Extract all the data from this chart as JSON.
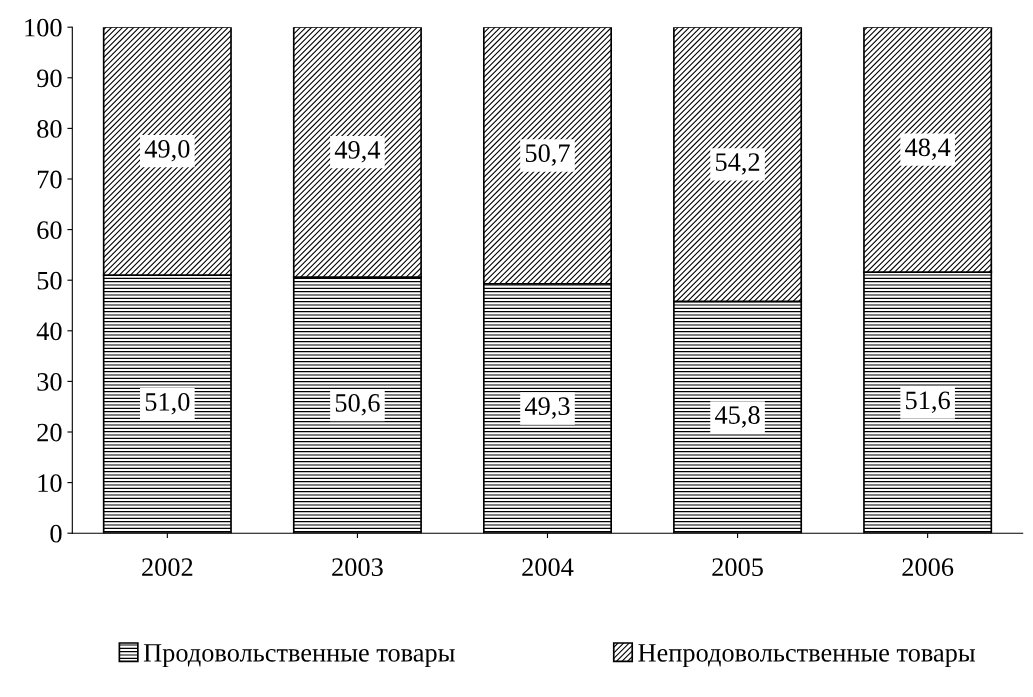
{
  "chart_data": {
    "type": "bar",
    "stacked": true,
    "categories": [
      "2002",
      "2003",
      "2004",
      "2005",
      "2006"
    ],
    "series": [
      {
        "name": "Продовольственные товары",
        "color": "#000000",
        "values": [
          51.0,
          50.6,
          49.3,
          45.8,
          51.6
        ],
        "value_labels": [
          "51,0",
          "50,6",
          "49,3",
          "45,8",
          "51,6"
        ]
      },
      {
        "name": "Непродовольственные товары",
        "color": "#000000",
        "values": [
          49.0,
          49.4,
          50.7,
          54.2,
          48.4
        ],
        "value_labels": [
          "49,0",
          "49,4",
          "50,7",
          "54,2",
          "48,4"
        ]
      }
    ],
    "ylim": [
      0,
      100
    ],
    "yticks": [
      0,
      10,
      20,
      30,
      40,
      50,
      60,
      70,
      80,
      90,
      100
    ],
    "grid": false,
    "legend": "bottom"
  }
}
